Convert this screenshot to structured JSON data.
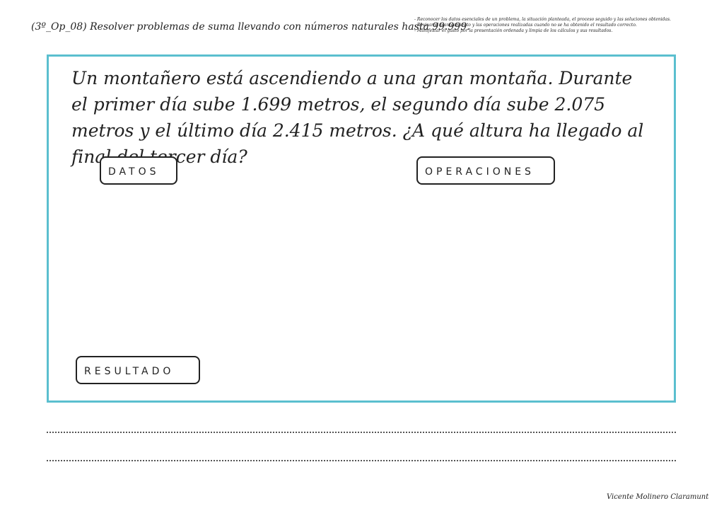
{
  "header": {
    "title": "(3º_Op_08) Resolver problemas de suma llevando con números naturales hasta 99.999.",
    "criteria": [
      "- Reconocer los datos esenciales de un problema, la situación planteada, el proceso seguido y las soluciones obtenidas.",
      "- Revisar el planteamiento y las operaciones realizadas cuando no se ha obtenido el resultado correcto.",
      "- Manifestar el gusto por la presentación ordenada y limpia de los cálculos y sus resultados."
    ]
  },
  "problem": "Un montañero está ascendiendo a una gran montaña. Durante el primer día sube 1.699 metros, el segundo día sube 2.075 metros y el último día 2.415 metros. ¿A qué altura ha llegado al final del tercer día?",
  "labels": {
    "data": "DATOS",
    "operations": "OPERACIONES",
    "result": "RESULTADO"
  },
  "footer": {
    "author": "Vicente Molinero Claramunt"
  }
}
